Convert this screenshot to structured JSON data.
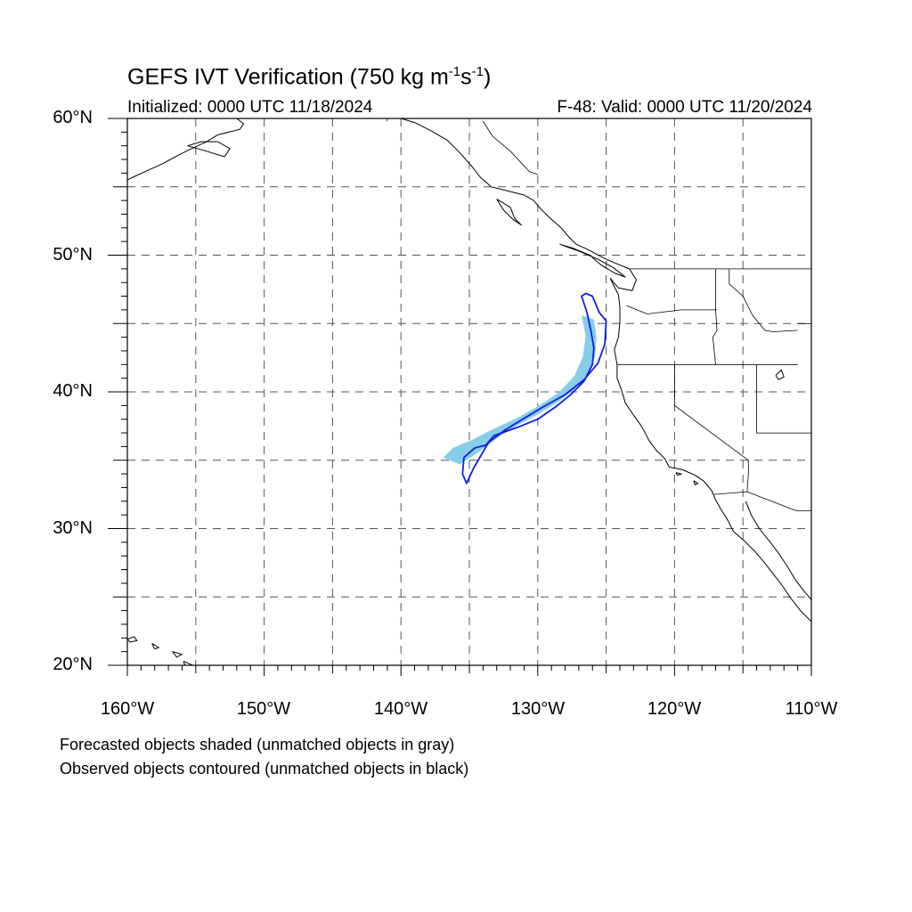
{
  "title": {
    "main": "GEFS IVT Verification (750 kg m",
    "sup1": "-1",
    "mid": "s",
    "sup2": "-1",
    "end": ")"
  },
  "initialized": "Initialized: 0000 UTC 11/18/2024",
  "valid": "F-48: Valid: 0000 UTC 11/20/2024",
  "lat_labels": [
    "60°N",
    "50°N",
    "40°N",
    "30°N",
    "20°N"
  ],
  "lon_labels": [
    "160°W",
    "150°W",
    "140°W",
    "130°W",
    "120°W",
    "110°W"
  ],
  "notes": [
    "Forecasted objects shaded (unmatched objects in gray)",
    "Observed objects contoured (unmatched objects in black)"
  ],
  "colors": {
    "forecast_fill": "#87CEE8",
    "observed_contour": "#1020E0",
    "coastline": "#000000",
    "grid": "#555555"
  },
  "extent": {
    "lon_min": -160,
    "lon_max": -110,
    "lat_min": 20,
    "lat_max": 60
  },
  "forecast_object": {
    "lonlat": [
      [
        -126.8,
        45.6
      ],
      [
        -125.9,
        45.3
      ],
      [
        -125.7,
        44.0
      ],
      [
        -125.8,
        42.6
      ],
      [
        -126.3,
        41.3
      ],
      [
        -127.3,
        40.2
      ],
      [
        -128.6,
        39.2
      ],
      [
        -130.1,
        38.3
      ],
      [
        -131.6,
        37.5
      ],
      [
        -133.0,
        36.6
      ],
      [
        -134.3,
        35.6
      ],
      [
        -135.7,
        34.7
      ],
      [
        -136.9,
        35.2
      ],
      [
        -136.2,
        35.9
      ],
      [
        -134.8,
        36.5
      ],
      [
        -133.2,
        37.3
      ],
      [
        -131.5,
        38.1
      ],
      [
        -129.9,
        39.0
      ],
      [
        -128.4,
        40.0
      ],
      [
        -127.3,
        41.2
      ],
      [
        -126.7,
        42.6
      ],
      [
        -126.5,
        44.1
      ]
    ]
  },
  "observed_object": {
    "lonlat": [
      [
        -126.5,
        47.2
      ],
      [
        -126.0,
        47.0
      ],
      [
        -125.5,
        45.8
      ],
      [
        -125.0,
        45.2
      ],
      [
        -125.1,
        43.5
      ],
      [
        -125.6,
        42.1
      ],
      [
        -126.6,
        40.9
      ],
      [
        -128.0,
        39.8
      ],
      [
        -129.6,
        38.9
      ],
      [
        -131.1,
        38.0
      ],
      [
        -132.4,
        37.2
      ],
      [
        -133.6,
        36.3
      ],
      [
        -134.7,
        34.4
      ],
      [
        -135.2,
        33.3
      ],
      [
        -135.5,
        34.0
      ],
      [
        -135.4,
        35.2
      ],
      [
        -134.6,
        35.9
      ],
      [
        -133.8,
        36.1
      ],
      [
        -133.2,
        36.8
      ],
      [
        -131.5,
        37.4
      ],
      [
        -130.0,
        38.0
      ],
      [
        -128.7,
        38.9
      ],
      [
        -127.6,
        39.8
      ],
      [
        -126.6,
        40.8
      ],
      [
        -126.0,
        42.0
      ],
      [
        -125.9,
        43.2
      ],
      [
        -126.1,
        44.4
      ],
      [
        -126.4,
        45.8
      ],
      [
        -126.8,
        47.0
      ]
    ]
  },
  "coastline": [
    [
      [
        -152.0,
        60.0
      ],
      [
        -151.5,
        59.6
      ],
      [
        -151.8,
        59.2
      ],
      [
        -152.6,
        59.0
      ],
      [
        -153.4,
        58.8
      ],
      [
        -154.2,
        58.3
      ],
      [
        -155.3,
        57.8
      ],
      [
        -156.3,
        57.3
      ],
      [
        -157.4,
        56.7
      ],
      [
        -158.5,
        56.2
      ],
      [
        -159.6,
        55.7
      ],
      [
        -160.0,
        55.5
      ]
    ],
    [
      [
        -155.6,
        58.0
      ],
      [
        -154.2,
        57.6
      ],
      [
        -152.9,
        57.2
      ],
      [
        -152.5,
        57.8
      ],
      [
        -153.4,
        58.3
      ],
      [
        -154.6,
        58.3
      ],
      [
        -155.6,
        58.0
      ]
    ],
    [
      [
        -140.0,
        60.0
      ],
      [
        -139.0,
        59.7
      ],
      [
        -137.8,
        59.1
      ],
      [
        -136.6,
        58.4
      ],
      [
        -135.8,
        57.6
      ],
      [
        -134.9,
        56.6
      ],
      [
        -134.2,
        55.7
      ],
      [
        -133.4,
        55.0
      ],
      [
        -132.2,
        54.7
      ],
      [
        -131.0,
        54.4
      ],
      [
        -130.3,
        54.0
      ],
      [
        -129.8,
        53.4
      ],
      [
        -129.2,
        52.8
      ],
      [
        -128.3,
        52.0
      ],
      [
        -127.7,
        51.3
      ],
      [
        -127.2,
        50.8
      ],
      [
        -126.3,
        50.4
      ],
      [
        -125.2,
        49.8
      ],
      [
        -124.3,
        49.4
      ],
      [
        -123.3,
        49.0
      ],
      [
        -122.8,
        48.2
      ],
      [
        -123.1,
        47.4
      ],
      [
        -124.1,
        47.6
      ],
      [
        -124.7,
        48.3
      ],
      [
        -124.1,
        47.1
      ],
      [
        -124.0,
        46.2
      ],
      [
        -124.0,
        45.1
      ],
      [
        -124.1,
        44.0
      ],
      [
        -124.4,
        43.1
      ],
      [
        -124.2,
        42.0
      ],
      [
        -124.2,
        41.0
      ],
      [
        -123.9,
        40.2
      ],
      [
        -123.6,
        39.2
      ],
      [
        -123.0,
        38.3
      ],
      [
        -122.5,
        37.6
      ],
      [
        -122.2,
        37.1
      ],
      [
        -121.9,
        36.5
      ],
      [
        -121.4,
        35.8
      ],
      [
        -120.7,
        35.1
      ],
      [
        -120.4,
        34.5
      ],
      [
        -119.4,
        34.3
      ],
      [
        -118.5,
        33.9
      ],
      [
        -117.9,
        33.5
      ],
      [
        -117.3,
        32.8
      ],
      [
        -117.0,
        32.1
      ],
      [
        -116.6,
        31.4
      ],
      [
        -116.1,
        30.6
      ],
      [
        -115.7,
        29.8
      ],
      [
        -114.9,
        29.1
      ],
      [
        -114.1,
        28.3
      ],
      [
        -113.5,
        27.6
      ],
      [
        -112.8,
        26.7
      ],
      [
        -112.1,
        25.8
      ],
      [
        -111.5,
        24.9
      ],
      [
        -110.8,
        24.0
      ],
      [
        -110.0,
        23.2
      ]
    ],
    [
      [
        -114.8,
        32.0
      ],
      [
        -114.4,
        31.0
      ],
      [
        -113.8,
        30.0
      ],
      [
        -113.0,
        29.0
      ],
      [
        -112.4,
        28.2
      ],
      [
        -111.8,
        27.3
      ],
      [
        -111.2,
        26.3
      ],
      [
        -110.6,
        25.5
      ],
      [
        -110.0,
        24.8
      ]
    ],
    [
      [
        -128.4,
        50.8
      ],
      [
        -127.4,
        50.5
      ],
      [
        -126.2,
        50.0
      ],
      [
        -125.4,
        49.3
      ],
      [
        -124.4,
        48.7
      ],
      [
        -123.6,
        48.4
      ],
      [
        -124.5,
        49.1
      ],
      [
        -125.6,
        49.7
      ],
      [
        -127.0,
        50.3
      ],
      [
        -128.4,
        50.8
      ]
    ],
    [
      [
        -133.0,
        54.1
      ],
      [
        -132.0,
        53.5
      ],
      [
        -131.7,
        52.7
      ],
      [
        -131.2,
        52.2
      ],
      [
        -131.8,
        52.6
      ],
      [
        -132.5,
        53.3
      ],
      [
        -133.0,
        54.1
      ]
    ],
    [
      [
        -160.0,
        21.9
      ],
      [
        -159.5,
        22.1
      ],
      [
        -159.3,
        21.8
      ],
      [
        -159.8,
        21.7
      ],
      [
        -160.0,
        21.9
      ]
    ],
    [
      [
        -158.2,
        21.6
      ],
      [
        -157.7,
        21.3
      ],
      [
        -158.0,
        21.2
      ],
      [
        -158.2,
        21.6
      ]
    ],
    [
      [
        -156.7,
        21.0
      ],
      [
        -156.0,
        20.8
      ],
      [
        -156.4,
        20.6
      ],
      [
        -156.7,
        21.0
      ]
    ],
    [
      [
        -155.9,
        20.3
      ],
      [
        -155.0,
        19.9
      ],
      [
        -155.6,
        19.5
      ],
      [
        -155.9,
        20.3
      ]
    ],
    [
      [
        -118.6,
        33.5
      ],
      [
        -118.3,
        33.3
      ],
      [
        -118.5,
        33.2
      ],
      [
        -118.6,
        33.5
      ]
    ],
    [
      [
        -119.9,
        34.1
      ],
      [
        -119.5,
        34.0
      ],
      [
        -119.8,
        33.9
      ],
      [
        -119.9,
        34.1
      ]
    ]
  ],
  "borders": [
    [
      [
        -141.0,
        60.0
      ],
      [
        -141.0,
        59.8
      ]
    ],
    [
      [
        -123.3,
        49.0
      ],
      [
        -110.0,
        49.0
      ]
    ],
    [
      [
        -124.2,
        42.0
      ],
      [
        -120.0,
        42.0
      ],
      [
        -111.0,
        42.0
      ]
    ],
    [
      [
        -120.0,
        42.0
      ],
      [
        -120.0,
        39.0
      ],
      [
        -114.6,
        35.0
      ],
      [
        -114.6,
        34.0
      ],
      [
        -114.7,
        32.7
      ]
    ],
    [
      [
        -123.5,
        46.3
      ],
      [
        -122.0,
        45.7
      ],
      [
        -119.5,
        46.0
      ],
      [
        -116.9,
        46.0
      ]
    ],
    [
      [
        -117.0,
        49.0
      ],
      [
        -117.0,
        46.0
      ],
      [
        -116.9,
        44.5
      ],
      [
        -117.2,
        44.0
      ],
      [
        -117.0,
        42.0
      ]
    ],
    [
      [
        -116.0,
        49.0
      ],
      [
        -116.0,
        47.9
      ],
      [
        -115.0,
        47.0
      ],
      [
        -114.3,
        45.6
      ],
      [
        -113.4,
        44.5
      ],
      [
        -112.8,
        44.4
      ],
      [
        -111.0,
        44.5
      ]
    ],
    [
      [
        -114.0,
        42.0
      ],
      [
        -114.0,
        37.0
      ],
      [
        -110.0,
        37.0
      ]
    ],
    [
      [
        -111.0,
        45.0
      ],
      [
        -110.0,
        45.0
      ]
    ],
    [
      [
        -117.1,
        32.5
      ],
      [
        -114.7,
        32.7
      ],
      [
        -111.1,
        31.3
      ],
      [
        -110.0,
        31.3
      ]
    ],
    [
      [
        -134.0,
        59.8
      ],
      [
        -133.3,
        58.7
      ],
      [
        -132.0,
        57.6
      ],
      [
        -130.6,
        56.1
      ],
      [
        -130.0,
        55.9
      ]
    ]
  ],
  "lakes": [
    [
      [
        -112.6,
        41.2
      ],
      [
        -112.2,
        41.6
      ],
      [
        -112.0,
        41.1
      ],
      [
        -112.4,
        40.9
      ],
      [
        -112.6,
        41.2
      ]
    ]
  ]
}
